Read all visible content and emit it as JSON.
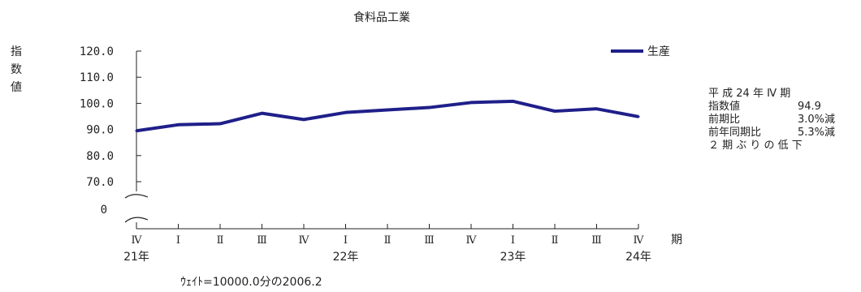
{
  "chart_data": {
    "type": "line",
    "title": "食料品工業",
    "ylabel": "指数値",
    "xlabel": "期",
    "ylim": [
      70.0,
      120.0
    ],
    "yticks": [
      "120.0",
      "110.0",
      "100.0",
      "90.0",
      "80.0",
      "70.0"
    ],
    "y_zero_label": "0",
    "x_quarters": [
      "Ⅳ",
      "Ⅰ",
      "Ⅱ",
      "Ⅲ",
      "Ⅳ",
      "Ⅰ",
      "Ⅱ",
      "Ⅲ",
      "Ⅳ",
      "Ⅰ",
      "Ⅱ",
      "Ⅲ",
      "Ⅳ"
    ],
    "x_years": [
      {
        "index": 0,
        "label": "21年"
      },
      {
        "index": 5,
        "label": "22年"
      },
      {
        "index": 9,
        "label": "23年"
      },
      {
        "index": 12,
        "label": "24年"
      }
    ],
    "series": [
      {
        "name": "生産",
        "color": "#1f1f8a",
        "values": [
          89.5,
          91.8,
          92.2,
          96.2,
          93.8,
          96.5,
          97.5,
          98.4,
          100.3,
          100.8,
          97.0,
          97.9,
          94.9
        ]
      }
    ],
    "legend_position": "top-right",
    "grid": false,
    "axis_break": true
  },
  "weight_note": "ｳｪｲﾄ=10000.0分の2006.2",
  "side_note": {
    "period": "平 成 24 年 Ⅳ 期",
    "rows": [
      {
        "label": "指数値",
        "value": "94.9"
      },
      {
        "label": "前期比",
        "value": "3.0%減"
      },
      {
        "label": "前年同期比",
        "value": "5.3%減"
      }
    ],
    "summary": "２ 期 ぶ り の 低 下"
  }
}
